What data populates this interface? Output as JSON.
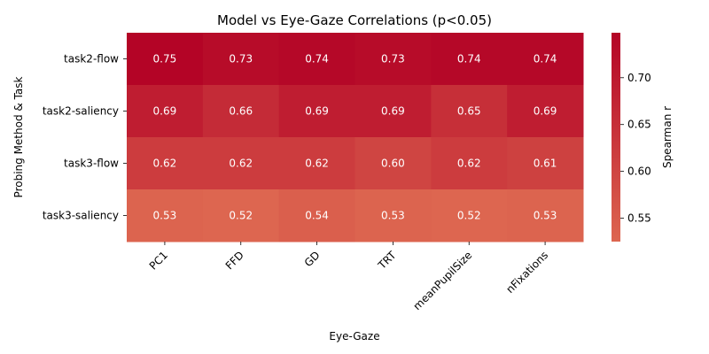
{
  "chart_data": {
    "type": "heatmap",
    "title": "Model vs Eye-Gaze Correlations (p<0.05)",
    "xlabel": "Eye-Gaze",
    "ylabel": "Probing Method & Task",
    "x_categories": [
      "PC1",
      "FFD",
      "GD",
      "TRT",
      "meanPupilSize",
      "nFixations"
    ],
    "y_categories": [
      "task2-flow",
      "task2-saliency",
      "task3-flow",
      "task3-saliency"
    ],
    "values": [
      [
        0.75,
        0.73,
        0.74,
        0.73,
        0.74,
        0.74
      ],
      [
        0.69,
        0.66,
        0.69,
        0.69,
        0.65,
        0.69
      ],
      [
        0.62,
        0.62,
        0.62,
        0.6,
        0.62,
        0.61
      ],
      [
        0.53,
        0.52,
        0.54,
        0.53,
        0.52,
        0.53
      ]
    ],
    "cell_labels": [
      [
        "0.75",
        "0.73",
        "0.74",
        "0.73",
        "0.74",
        "0.74"
      ],
      [
        "0.69",
        "0.66",
        "0.69",
        "0.69",
        "0.65",
        "0.69"
      ],
      [
        "0.62",
        "0.62",
        "0.62",
        "0.60",
        "0.62",
        "0.61"
      ],
      [
        "0.53",
        "0.52",
        "0.54",
        "0.53",
        "0.52",
        "0.53"
      ]
    ],
    "colorbar": {
      "label": "Spearman r",
      "range": [
        0.525,
        0.748
      ],
      "ticks": [
        0.55,
        0.6,
        0.65,
        0.7
      ],
      "tick_labels": [
        "0.55",
        "0.60",
        "0.65",
        "0.70"
      ],
      "colormap": "coolwarm",
      "low_color": "#dd6650",
      "high_color": "#b40426"
    },
    "grid": false,
    "legend": "colorbar-right"
  }
}
